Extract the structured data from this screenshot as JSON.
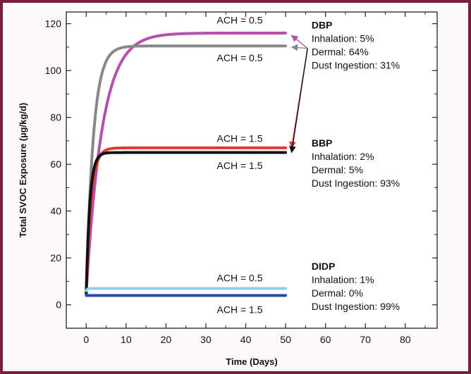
{
  "chart_data": {
    "type": "line",
    "title": "",
    "xlabel": "Time (Days)",
    "ylabel": "Total SVOC Exposure (µg/kg/d)",
    "xlim": [
      -5,
      88
    ],
    "ylim": [
      -10,
      125
    ],
    "xticks": [
      0,
      10,
      20,
      30,
      40,
      50,
      60,
      70,
      80
    ],
    "yticks": [
      0,
      20,
      40,
      60,
      80,
      100,
      120
    ],
    "grid": false,
    "series": [
      {
        "label": "ACH = 0.5",
        "color": "#b64fb0",
        "ss": 116,
        "tau": 4.0,
        "y0": 5
      },
      {
        "label": "ACH = 0.5",
        "color": "#888888",
        "ss": 110.5,
        "tau": 1.8,
        "y0": 5
      },
      {
        "label": "ACH = 1.5",
        "color": "#e23a2a",
        "ss": 67,
        "tau": 1.2,
        "y0": 5
      },
      {
        "label": "ACH = 1.5",
        "color": "#111111",
        "ss": 65,
        "tau": 0.9,
        "y0": 5
      },
      {
        "label": "ACH = 0.5",
        "color": "#8fd3ea",
        "ss": 7,
        "tau": 0.3,
        "y0": 6
      },
      {
        "label": "ACH = 1.5",
        "color": "#2f44a8",
        "ss": 4,
        "tau": 0.3,
        "y0": 4
      }
    ],
    "annotations": [
      {
        "text": "ACH = 0.5",
        "x": 38.5,
        "y": 120
      },
      {
        "text": "ACH = 0.5",
        "x": 38.5,
        "y": 104
      },
      {
        "text": "ACH = 1.5",
        "x": 38.5,
        "y": 69.5
      },
      {
        "text": "ACH = 1.5",
        "x": 38.5,
        "y": 58
      },
      {
        "text": "ACH = 0.5",
        "x": 38.5,
        "y": 10
      },
      {
        "text": "ACH = 1.5",
        "x": 38.5,
        "y": -3.5
      }
    ],
    "groups": [
      {
        "name": "DBP",
        "lines": [
          "Inhalation: 5%",
          "Dermal: 64%",
          "Dust Ingestion: 31%"
        ],
        "x": 56.5,
        "y": 118
      },
      {
        "name": "BBP",
        "lines": [
          "Inhalation: 2%",
          "Dermal: 5%",
          "Dust Ingestion: 93%"
        ],
        "x": 56.5,
        "y": 67.5
      },
      {
        "name": "DIDP",
        "lines": [
          "Inhalation: 1%",
          "Dermal: 0%",
          "Dust Ingestion: 99%"
        ],
        "x": 56.5,
        "y": 15
      }
    ],
    "arrows": [
      {
        "from": [
          55.5,
          109.5
        ],
        "to": [
          51.5,
          115
        ],
        "color": "#b64fb0"
      },
      {
        "from": [
          55.5,
          109.5
        ],
        "to": [
          51.5,
          67
        ],
        "color": "#e23a2a"
      },
      {
        "from": [
          55.5,
          109.5
        ],
        "to": [
          51.5,
          65
        ],
        "color": "#111111"
      },
      {
        "from": [
          55.5,
          109.5
        ],
        "to": [
          51.5,
          110
        ],
        "color": "#888888"
      }
    ]
  }
}
